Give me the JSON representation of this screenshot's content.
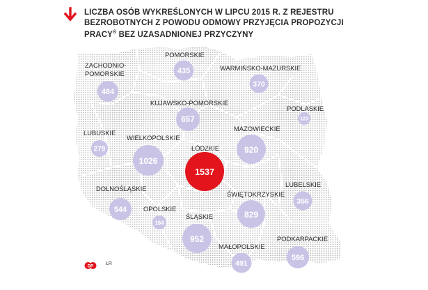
{
  "header": {
    "title_line1": "Liczba osób wykreślonych w lipcu 2015 r. z rejestru",
    "title_line2": "bezrobotnych z powodu odmowy przyjęcia propozycji",
    "title_line3": "pracy",
    "title_sup": "®",
    "title_line3_rest": " bez uzasadnionej przyczyny"
  },
  "colors": {
    "bubble": "#c9c4e6",
    "highlight": "#e3141c",
    "arrow": "#e3141c",
    "map_dots": "#b9b9b9"
  },
  "regions": [
    {
      "label": "POMORSKIE",
      "value": "435"
    },
    {
      "label": "ZACHODNIO-",
      "label2": "POMORSKIE",
      "value": "484"
    },
    {
      "label": "WARMIŃSKO-MAZURSKIE",
      "value": "370"
    },
    {
      "label": "KUJAWSKO-POMORSKIE",
      "value": "657"
    },
    {
      "label": "PODLASKIE",
      "value": "123"
    },
    {
      "label": "LUBUSKIE",
      "value": "279"
    },
    {
      "label": "WIELKOPOLSKIE",
      "value": "1026"
    },
    {
      "label": "MAZOWIECKIE",
      "value": "920"
    },
    {
      "label": "ŁÓDZKIE",
      "value": "1537"
    },
    {
      "label": "DOLNOŚLĄSKIE",
      "value": "544"
    },
    {
      "label": "LUBELSKIE",
      "value": "356"
    },
    {
      "label": "ŚWIĘTOKRZYSKIE",
      "value": "829"
    },
    {
      "label": "OPOLSKIE",
      "value": "184"
    },
    {
      "label": "ŚLĄSKIE",
      "value": "952"
    },
    {
      "label": "PODKARPACKIE",
      "value": "596"
    },
    {
      "label": "MAŁOPOLSKIE",
      "value": "491"
    }
  ],
  "footer": {
    "logo_text": "DP",
    "credit": "ŁR"
  }
}
